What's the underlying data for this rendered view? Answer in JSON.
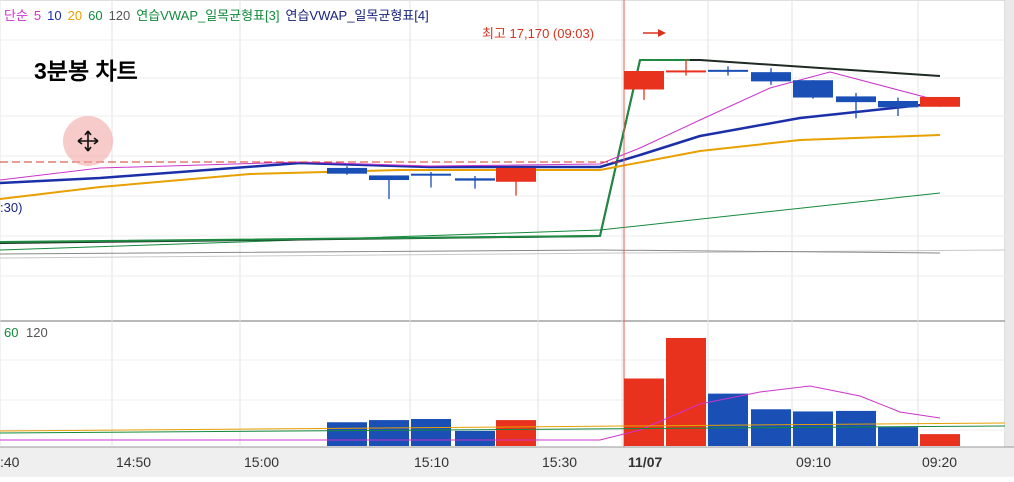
{
  "header": {
    "legend": [
      {
        "text": "단순",
        "color": "#cc33cc"
      },
      {
        "text": "5",
        "color": "#cc33cc"
      },
      {
        "text": "10",
        "color": "#1a2fa8"
      },
      {
        "text": "20",
        "color": "#e8a000"
      },
      {
        "text": "60",
        "color": "#138a3c"
      },
      {
        "text": "120",
        "color": "#555555"
      },
      {
        "text": "연습VWAP_일목균형표[3]",
        "color": "#138a3c"
      },
      {
        "text": "연습VWAP_일목균형표[4]",
        "color": "#1a237e"
      }
    ]
  },
  "overlay": {
    "title": "3분봉 차트",
    "axis_fragment": ":30)",
    "volume_legend": [
      "60",
      "120"
    ]
  },
  "chart_data": {
    "type": "candlestick",
    "title": "3분봉 차트",
    "colors": {
      "up": "#e8321e",
      "down": "#1a4fb5"
    },
    "x_labels": [
      ":40",
      "14:50",
      "15:00",
      "15:10",
      "15:30",
      "11/07",
      "09:10",
      "09:20"
    ],
    "high_annotation": {
      "label": "최고 17,170 (09:03)",
      "value": 17170,
      "time": "09:03"
    },
    "candles": [
      {
        "time": "15:05",
        "open": 16230,
        "close": 16180,
        "high": 16245,
        "low": 16170,
        "volume": 44
      },
      {
        "time": "15:08",
        "open": 16165,
        "close": 16125,
        "high": 16165,
        "low": 15960,
        "volume": 48
      },
      {
        "time": "15:11",
        "open": 16180,
        "close": 16175,
        "high": 16195,
        "low": 16060,
        "volume": 50
      },
      {
        "time": "15:14",
        "open": 16140,
        "close": 16120,
        "high": 16160,
        "low": 16050,
        "volume": 28
      },
      {
        "time": "15:20",
        "open": 16110,
        "close": 16230,
        "high": 16230,
        "low": 15990,
        "volume": 48
      },
      {
        "time": "09:00",
        "open": 16910,
        "close": 17070,
        "high": 17070,
        "low": 16820,
        "volume": 125
      },
      {
        "time": "09:03",
        "open": 17060,
        "close": 17075,
        "high": 17170,
        "low": 17030,
        "volume": 200
      },
      {
        "time": "09:06",
        "open": 17080,
        "close": 17065,
        "high": 17110,
        "low": 17030,
        "volume": 97
      },
      {
        "time": "09:09",
        "open": 17060,
        "close": 16980,
        "high": 17095,
        "low": 16950,
        "volume": 68
      },
      {
        "time": "09:12",
        "open": 16990,
        "close": 16840,
        "high": 16990,
        "low": 16830,
        "volume": 64
      },
      {
        "time": "09:15",
        "open": 16850,
        "close": 16800,
        "high": 16880,
        "low": 16660,
        "volume": 65
      },
      {
        "time": "09:18",
        "open": 16810,
        "close": 16755,
        "high": 16840,
        "low": 16680,
        "volume": 35
      },
      {
        "time": "09:21",
        "open": 16760,
        "close": 16845,
        "high": 16845,
        "low": 16760,
        "volume": 22
      }
    ]
  }
}
